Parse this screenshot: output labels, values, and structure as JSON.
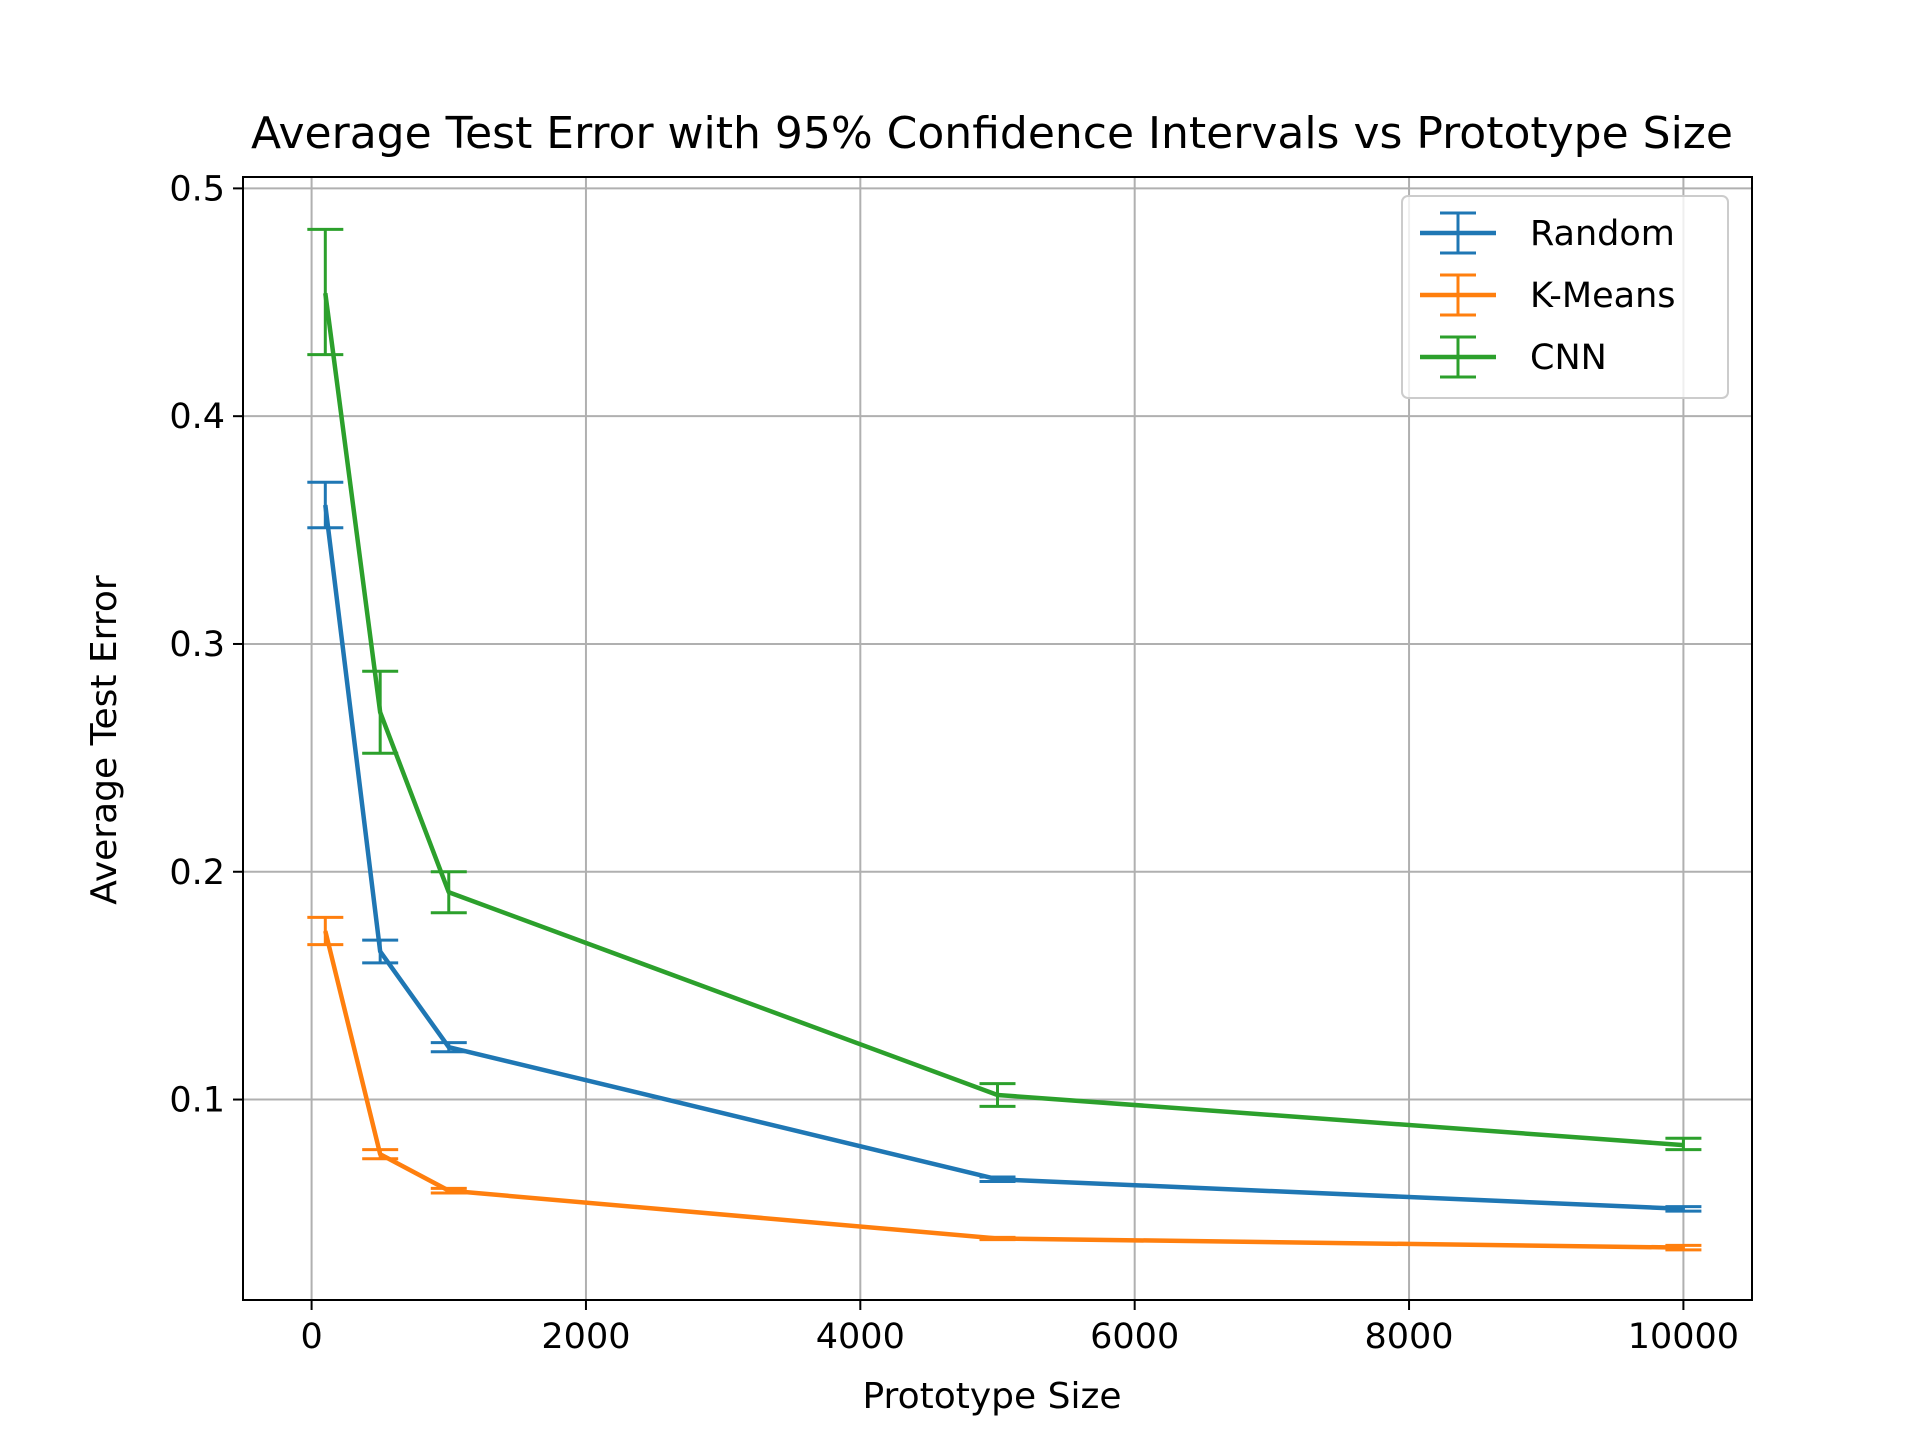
{
  "chart_data": {
    "type": "line",
    "title": "Average Test Error with 95% Confidence Intervals vs Prototype Size",
    "xlabel": "Prototype Size",
    "ylabel": "Average Test Error",
    "xlim": [
      -500,
      10500
    ],
    "ylim": [
      0.012,
      0.505
    ],
    "xticks": [
      0,
      2000,
      4000,
      6000,
      8000,
      10000
    ],
    "xtick_labels": [
      "0",
      "2000",
      "4000",
      "6000",
      "8000",
      "10000"
    ],
    "yticks": [
      0.1,
      0.2,
      0.3,
      0.4,
      0.5
    ],
    "ytick_labels": [
      "0.1",
      "0.2",
      "0.3",
      "0.4",
      "0.5"
    ],
    "grid": true,
    "legend_position": "top-right",
    "x": [
      100,
      500,
      1000,
      5000,
      10000
    ],
    "series": [
      {
        "name": "Random",
        "color": "#1f77b4",
        "values": [
          0.361,
          0.165,
          0.123,
          0.065,
          0.052
        ],
        "err_low": [
          0.351,
          0.16,
          0.121,
          0.064,
          0.051
        ],
        "err_high": [
          0.371,
          0.17,
          0.125,
          0.066,
          0.053
        ]
      },
      {
        "name": "K-Means",
        "color": "#ff7f0e",
        "values": [
          0.174,
          0.076,
          0.06,
          0.039,
          0.035
        ],
        "err_low": [
          0.168,
          0.074,
          0.059,
          0.0385,
          0.034
        ],
        "err_high": [
          0.18,
          0.078,
          0.061,
          0.0395,
          0.036
        ]
      },
      {
        "name": "CNN",
        "color": "#2ca02c",
        "values": [
          0.454,
          0.27,
          0.191,
          0.102,
          0.08
        ],
        "err_low": [
          0.427,
          0.252,
          0.182,
          0.097,
          0.078
        ],
        "err_high": [
          0.482,
          0.288,
          0.2,
          0.107,
          0.083
        ]
      }
    ]
  }
}
